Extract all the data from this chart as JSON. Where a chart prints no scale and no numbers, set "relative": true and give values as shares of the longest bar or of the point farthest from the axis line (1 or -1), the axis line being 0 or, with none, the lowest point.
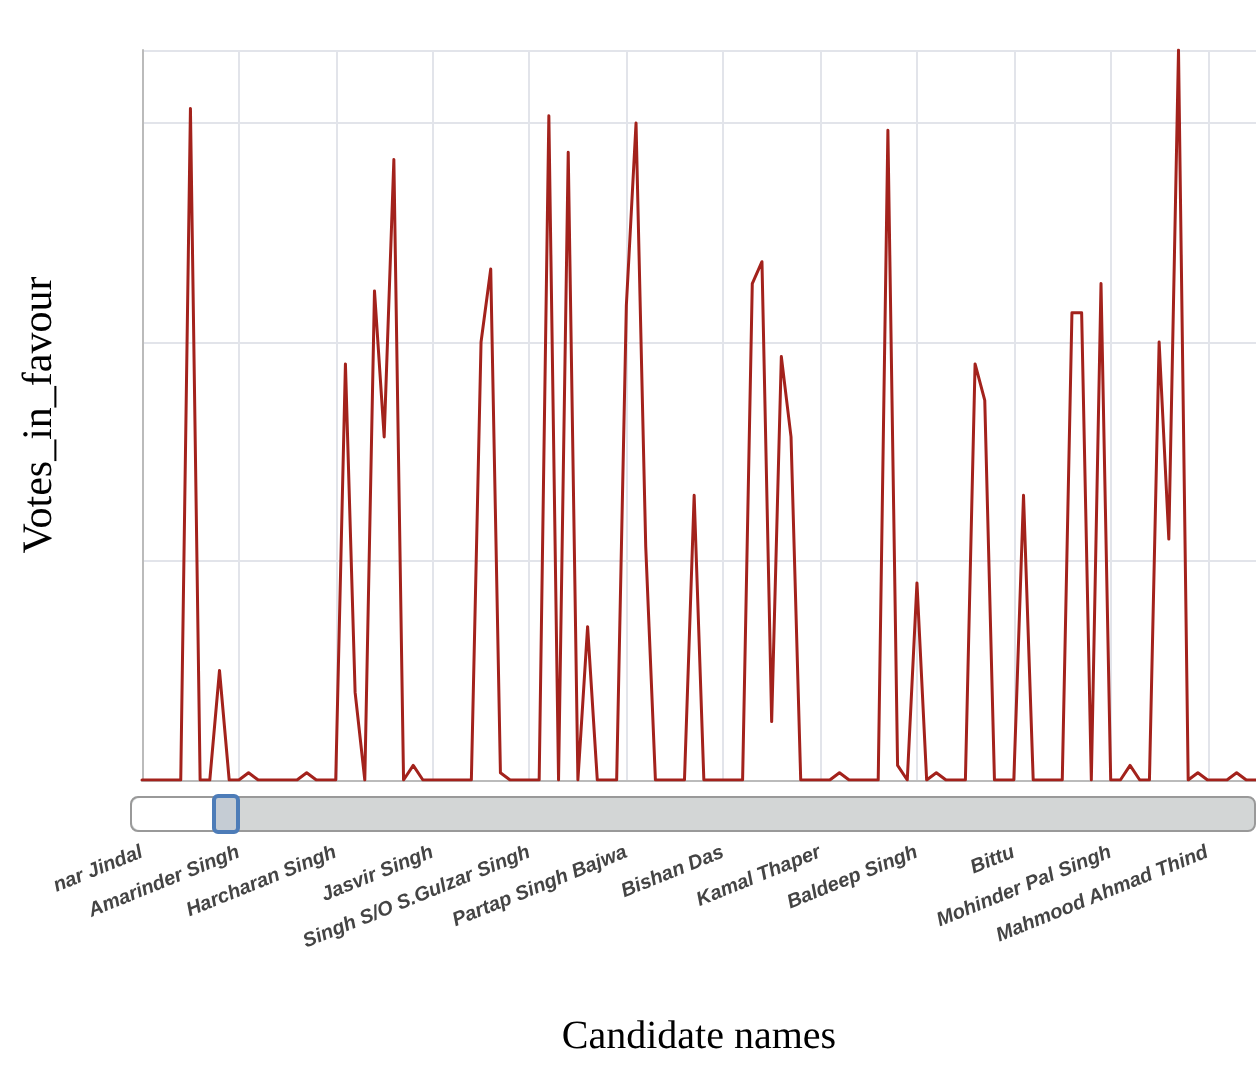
{
  "chart_data": {
    "type": "line",
    "xlabel": "Candidate names",
    "ylabel": "Votes_in_favour",
    "relative": true,
    "grid": true,
    "marker": "none",
    "line_style": "solid",
    "categories": [
      "nar Jindal",
      null,
      null,
      null,
      null,
      null,
      null,
      null,
      null,
      null,
      "Amarinder Singh",
      null,
      null,
      null,
      null,
      null,
      null,
      null,
      null,
      null,
      "Harcharan Singh",
      null,
      null,
      null,
      null,
      null,
      null,
      null,
      null,
      null,
      "Jasvir Singh",
      null,
      null,
      null,
      null,
      null,
      null,
      null,
      null,
      null,
      "Singh S/O S.Gulzar Singh",
      null,
      null,
      null,
      null,
      null,
      null,
      null,
      null,
      null,
      "Partap Singh Bajwa",
      null,
      null,
      null,
      null,
      null,
      null,
      null,
      null,
      null,
      "Bishan Das",
      null,
      null,
      null,
      null,
      null,
      null,
      null,
      null,
      null,
      "Kamal Thaper",
      null,
      null,
      null,
      null,
      null,
      null,
      null,
      null,
      null,
      "Baldeep Singh",
      null,
      null,
      null,
      null,
      null,
      null,
      null,
      null,
      null,
      "Bittu",
      null,
      null,
      null,
      null,
      null,
      null,
      null,
      null,
      null,
      "Mohinder Pal Singh",
      null,
      null,
      null,
      null,
      null,
      null,
      null,
      null,
      null,
      "Mahmood Ahmad Thind",
      null,
      null,
      null,
      null,
      null
    ],
    "series": [
      {
        "color": "#a3221c",
        "values": [
          0,
          0,
          0,
          0,
          0,
          0.92,
          0,
          0,
          0.15,
          0,
          0,
          0.01,
          0,
          0,
          0,
          0,
          0,
          0.01,
          0,
          0,
          0,
          0.57,
          0.12,
          0,
          0.67,
          0.47,
          0.85,
          0,
          0.02,
          0,
          0,
          0,
          0,
          0,
          0,
          0.6,
          0.7,
          0.01,
          0,
          0,
          0,
          0,
          0.91,
          0,
          0.86,
          0,
          0.21,
          0,
          0,
          0,
          0.65,
          0.9,
          0.32,
          0,
          0,
          0,
          0,
          0.39,
          0,
          0,
          0,
          0,
          0,
          0.68,
          0.71,
          0.08,
          0.58,
          0.47,
          0,
          0,
          0,
          0,
          0.01,
          0,
          0,
          0,
          0,
          0.89,
          0.02,
          0,
          0.27,
          0,
          0.01,
          0,
          0,
          0,
          0.57,
          0.52,
          0,
          0,
          0,
          0.39,
          0,
          0,
          0,
          0,
          0.64,
          0.64,
          0,
          0.68,
          0,
          0,
          0.02,
          0,
          0,
          0.6,
          0.33,
          1,
          0,
          0.01,
          0,
          0,
          0,
          0.01,
          0,
          0
        ]
      }
    ]
  }
}
